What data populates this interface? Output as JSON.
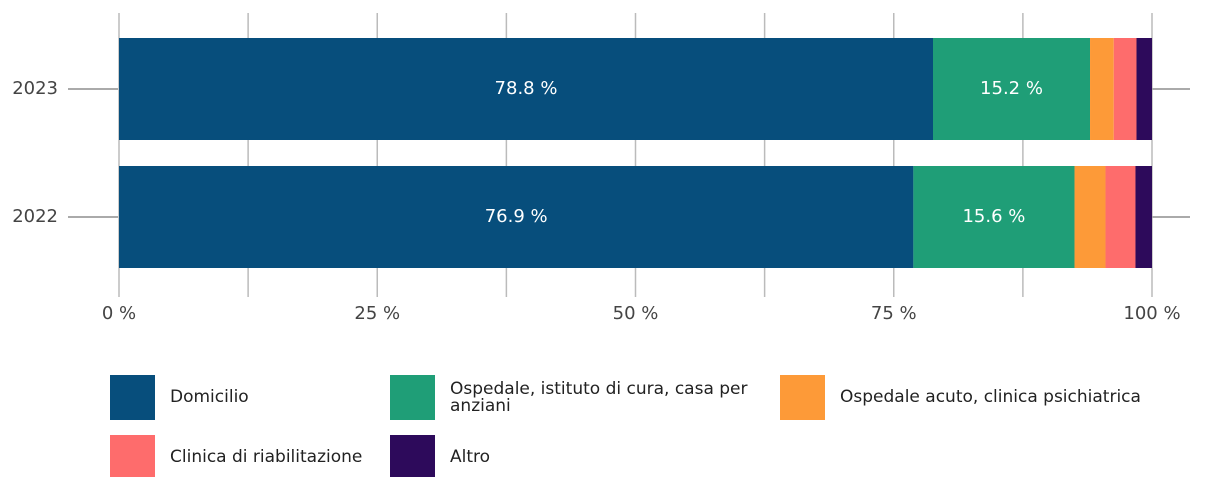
{
  "chart_data": {
    "type": "stacked-barh",
    "categories": [
      "2023",
      "2022"
    ],
    "series": [
      {
        "name": "Domicilio",
        "color": "#074e7c",
        "values": [
          78.8,
          76.9
        ],
        "value_labels": [
          "78.8 %",
          "76.9 %"
        ]
      },
      {
        "name": "Ospedale, istituto di cura, casa per anziani",
        "color": "#1f9e77",
        "values": [
          15.2,
          15.6
        ],
        "value_labels": [
          "15.2 %",
          "15.6 %"
        ]
      },
      {
        "name": "Ospedale acuto, clinica psichiatrica",
        "color": "#fd9a38",
        "values": [
          2.3,
          3.0
        ]
      },
      {
        "name": "Clinica di riabilitazione",
        "color": "#fe6c6c",
        "values": [
          2.2,
          2.9
        ]
      },
      {
        "name": "Altro",
        "color": "#2d0a5b",
        "values": [
          1.5,
          1.6
        ]
      }
    ],
    "xlim": [
      0,
      100
    ],
    "xticks": [
      {
        "value": 0,
        "label": "0 %"
      },
      {
        "value": 12.5,
        "label": null
      },
      {
        "value": 25,
        "label": "25 %"
      },
      {
        "value": 37.5,
        "label": null
      },
      {
        "value": 50,
        "label": "50 %"
      },
      {
        "value": 62.5,
        "label": null
      },
      {
        "value": 75,
        "label": "75 %"
      },
      {
        "value": 87.5,
        "label": null
      },
      {
        "value": 100,
        "label": "100 %"
      }
    ],
    "grid": true
  }
}
